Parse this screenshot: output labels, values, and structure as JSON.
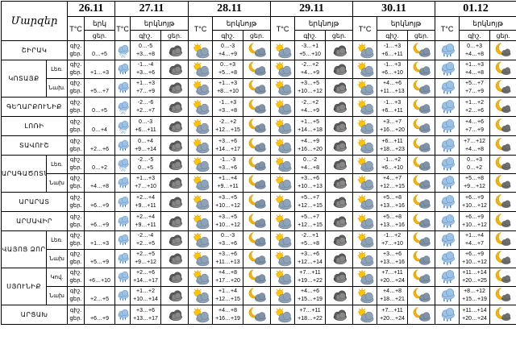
{
  "header": {
    "region_title": "Մարզեր",
    "dates": [
      "26.11",
      "27.11",
      "28.11",
      "29.11",
      "30.11",
      "01.12"
    ],
    "temp_label": "T°C",
    "precip_label": "երկնոյթ",
    "precip_label_first": "երկ",
    "night_label": "գիշ.",
    "day_label": "ցեր.",
    "day_label_first": "ցեր."
  },
  "regions": [
    {
      "name": "ՇԻՐԱԿ",
      "rows": [
        {
          "sub": "",
          "d0": {
            "t": "0…+5",
            "icon": "cloud-snow"
          },
          "days": [
            {
              "n": "0…-5",
              "d": "+3…+8",
              "in": "cloud-dark",
              "id": "sun-cloud"
            },
            {
              "n": "0…-3",
              "d": "+4…+9",
              "in": "moon-cloud",
              "id": "sun-cloud"
            },
            {
              "n": "-3…+1",
              "d": "+5…+10",
              "in": "cloud-dark",
              "id": "sun-cloud"
            },
            {
              "n": "-1…+3",
              "d": "+6…+11",
              "in": "moon-cloud",
              "id": "cloud-rain"
            },
            {
              "n": "0…+3",
              "d": "+4…+8",
              "in": "moon",
              "id": "cloud-rain"
            }
          ]
        }
      ]
    },
    {
      "name": "ԿՈՏԱՅՔ",
      "rows": [
        {
          "sub": "Լեռ.",
          "d0": {
            "t": "+1…+3",
            "icon": "cloud-rain"
          },
          "days": [
            {
              "n": "-1…-4",
              "d": "+3…+6",
              "in": "cloud-dark",
              "id": "sun-cloud"
            },
            {
              "n": "0…+3",
              "d": "+5…+8",
              "in": "moon-cloud",
              "id": "sun-cloud"
            },
            {
              "n": "-2…+2",
              "d": "+4…+9",
              "in": "cloud-dark",
              "id": "sun-cloud"
            },
            {
              "n": "-1…+3",
              "d": "+6…+10",
              "in": "moon-cloud",
              "id": "cloud-rain"
            },
            {
              "n": "+1…+3",
              "d": "+4…+8",
              "in": "moon",
              "id": "cloud-rain"
            }
          ]
        },
        {
          "sub": "Նախ.",
          "d0": {
            "t": "+5…+7",
            "icon": "cloud-rain"
          },
          "days": [
            {
              "n": "+1…+3",
              "d": "+7…+9",
              "in": "cloud-dark",
              "id": "sun-cloud"
            },
            {
              "n": "+1…+3",
              "d": "+8…+10",
              "in": "moon-cloud",
              "id": "sun-cloud"
            },
            {
              "n": "+3…+5",
              "d": "+10…+12",
              "in": "cloud-dark",
              "id": "sun-cloud"
            },
            {
              "n": "+4…+6",
              "d": "+11…+13",
              "in": "moon-cloud",
              "id": "cloud-rain"
            },
            {
              "n": "+5…+7",
              "d": "+7…+9",
              "in": "moon",
              "id": "cloud-rain"
            }
          ]
        }
      ]
    },
    {
      "name": "ԳԵՂԱՐՔՈՒՆԻՔ",
      "rows": [
        {
          "sub": "",
          "d0": {
            "t": "0…+5",
            "icon": "cloud-snow"
          },
          "days": [
            {
              "n": "-2…-6",
              "d": "+2…+7",
              "in": "cloud-dark",
              "id": "sun-cloud"
            },
            {
              "n": "-1…+3",
              "d": "+3…+8",
              "in": "moon-cloud",
              "id": "sun-cloud"
            },
            {
              "n": "-2…+2",
              "d": "+4…+9",
              "in": "cloud-dark",
              "id": "sun-cloud"
            },
            {
              "n": "-1…+3",
              "d": "+6…+11",
              "in": "moon-cloud",
              "id": "cloud-rain"
            },
            {
              "n": "+1…+2",
              "d": "+2…+6",
              "in": "moon",
              "id": "cloud-rain"
            }
          ]
        }
      ]
    },
    {
      "name": "ԼՈՌԻ",
      "rows": [
        {
          "sub": "",
          "d0": {
            "t": "0…+4",
            "icon": "cloud-snow"
          },
          "days": [
            {
              "n": "0…-3",
              "d": "+6…+11",
              "in": "cloud-dark",
              "id": "sun-cloud"
            },
            {
              "n": "-2…+2",
              "d": "+12…+15",
              "in": "moon-cloud",
              "id": "sun-cloud"
            },
            {
              "n": "+1…+5",
              "d": "+14…+18",
              "in": "cloud-dark",
              "id": "sun-cloud"
            },
            {
              "n": "+3…+7",
              "d": "+16…+20",
              "in": "moon-cloud",
              "id": "cloud-rain"
            },
            {
              "n": "+4…+6",
              "d": "+7…+9",
              "in": "moon",
              "id": "cloud-rain"
            }
          ]
        }
      ]
    },
    {
      "name": "ՏԱՎՈՒՇ",
      "rows": [
        {
          "sub": "",
          "d0": {
            "t": "+2…+6",
            "icon": "cloud-rain"
          },
          "days": [
            {
              "n": "0…+4",
              "d": "+9…+14",
              "in": "cloud-dark",
              "id": "sun-cloud"
            },
            {
              "n": "+3…+6",
              "d": "+14…+17",
              "in": "moon-cloud",
              "id": "sun-cloud"
            },
            {
              "n": "+4…+9",
              "d": "+16…+20",
              "in": "cloud-dark",
              "id": "sun-cloud"
            },
            {
              "n": "+6…+11",
              "d": "+18…+23",
              "in": "moon-cloud",
              "id": "cloud-rain"
            },
            {
              "n": "+7…+12",
              "d": "+4…+8",
              "in": "moon",
              "id": "cloud-rain"
            }
          ]
        }
      ]
    },
    {
      "name": "ԱՐԱԳԱԾՈՏՆ",
      "rows": [
        {
          "sub": "Լեռ.",
          "d0": {
            "t": "0…+2",
            "icon": "cloud-snow"
          },
          "days": [
            {
              "n": "-2…-5",
              "d": "0…+5",
              "in": "cloud-dark",
              "id": "sun-cloud"
            },
            {
              "n": "-1…-3",
              "d": "+3…+6",
              "in": "moon-cloud",
              "id": "sun-cloud"
            },
            {
              "n": "0…-2",
              "d": "+4…+8",
              "in": "cloud-dark",
              "id": "sun-cloud"
            },
            {
              "n": "-1…+2",
              "d": "+6…+10",
              "in": "moon-cloud",
              "id": "cloud-rain"
            },
            {
              "n": "0…+3",
              "d": "0…+2",
              "in": "moon",
              "id": "cloud-rain"
            }
          ]
        },
        {
          "sub": "Նախ",
          "d0": {
            "t": "+4…+8",
            "icon": "cloud-rain"
          },
          "days": [
            {
              "n": "+1…+3",
              "d": "+7…+10",
              "in": "cloud-dark",
              "id": "sun-cloud"
            },
            {
              "n": "+1…+4",
              "d": "+9…+11",
              "in": "moon-cloud",
              "id": "sun-cloud"
            },
            {
              "n": "+3…+6",
              "d": "+10…+13",
              "in": "cloud-dark",
              "id": "sun-cloud"
            },
            {
              "n": "+4…+7",
              "d": "+12…+15",
              "in": "moon-cloud",
              "id": "cloud-rain"
            },
            {
              "n": "+5…+8",
              "d": "+9…+12",
              "in": "moon",
              "id": "cloud-rain"
            }
          ]
        }
      ]
    },
    {
      "name": "ԱՐԱՐԱՏ",
      "rows": [
        {
          "sub": "",
          "d0": {
            "t": "+6…+9",
            "icon": "cloud-rain"
          },
          "days": [
            {
              "n": "+2…+4",
              "d": "+9…+11",
              "in": "cloud-dark",
              "id": "sun-cloud"
            },
            {
              "n": "+3…+5",
              "d": "+10…+12",
              "in": "moon-cloud",
              "id": "sun-cloud"
            },
            {
              "n": "+5…+7",
              "d": "+12…+15",
              "in": "cloud-dark",
              "id": "sun-cloud"
            },
            {
              "n": "+5…+8",
              "d": "+13…+16",
              "in": "moon-cloud",
              "id": "cloud-rain"
            },
            {
              "n": "+6…+9",
              "d": "+10…+12",
              "in": "moon",
              "id": "cloud-rain"
            }
          ]
        }
      ]
    },
    {
      "name": "ԱՐՄԱՎԻՐ",
      "rows": [
        {
          "sub": "",
          "d0": {
            "t": "+6…+9",
            "icon": "cloud-rain"
          },
          "days": [
            {
              "n": "+2…+4",
              "d": "+9…+11",
              "in": "cloud-dark",
              "id": "sun-cloud"
            },
            {
              "n": "+3…+5",
              "d": "+10…+12",
              "in": "moon-cloud",
              "id": "sun-cloud"
            },
            {
              "n": "+5…+7",
              "d": "+12…+15",
              "in": "cloud-dark",
              "id": "sun-cloud"
            },
            {
              "n": "+5…+8",
              "d": "+13…+16",
              "in": "moon-cloud",
              "id": "cloud-rain"
            },
            {
              "n": "+6…+9",
              "d": "+10…+12",
              "in": "moon",
              "id": "cloud-rain"
            }
          ]
        }
      ]
    },
    {
      "name": "ՎԱՅՈՑ ՁՈՐ",
      "rows": [
        {
          "sub": "Լեռ.",
          "d0": {
            "t": "+1…+3",
            "icon": "cloud-rain"
          },
          "days": [
            {
              "n": "-2…-4",
              "d": "+2…+5",
              "in": "cloud-dark",
              "id": "sun-cloud"
            },
            {
              "n": "0…-3",
              "d": "+3…+6",
              "in": "moon-cloud",
              "id": "sun-cloud"
            },
            {
              "n": "-2…+1",
              "d": "+5…+8",
              "in": "cloud-dark",
              "id": "sun-cloud"
            },
            {
              "n": "-1…+2",
              "d": "+7…+10",
              "in": "moon-cloud",
              "id": "cloud-rain"
            },
            {
              "n": "+1…+4",
              "d": "+4…+7",
              "in": "moon",
              "id": "cloud-rain"
            }
          ]
        },
        {
          "sub": "Նախ",
          "d0": {
            "t": "+5…+9",
            "icon": "cloud-rain"
          },
          "days": [
            {
              "n": "+2…+5",
              "d": "+9…+12",
              "in": "cloud-dark",
              "id": "sun-cloud"
            },
            {
              "n": "+3…+6",
              "d": "+11…+13",
              "in": "moon-cloud",
              "id": "sun-cloud"
            },
            {
              "n": "+3…+6",
              "d": "+12…+14",
              "in": "cloud-dark",
              "id": "sun-cloud"
            },
            {
              "n": "+3…+6",
              "d": "+13…+16",
              "in": "moon-cloud",
              "id": "cloud-rain"
            },
            {
              "n": "+6…+9",
              "d": "+10…+12",
              "in": "moon",
              "id": "cloud-rain"
            }
          ]
        }
      ]
    },
    {
      "name": "ՍՅՈՒՆԻՔ",
      "rows": [
        {
          "sub": "Կով.",
          "d0": {
            "t": "+6…+10",
            "icon": "cloud-rain"
          },
          "days": [
            {
              "n": "+2…+6",
              "d": "+14…+17",
              "in": "cloud-dark",
              "id": "sun-cloud"
            },
            {
              "n": "+4…+8",
              "d": "+17…+20",
              "in": "moon-cloud",
              "id": "sun-cloud"
            },
            {
              "n": "+7…+11",
              "d": "+19…+22",
              "in": "cloud-dark",
              "id": "sun-cloud"
            },
            {
              "n": "+7…+11",
              "d": "+20…+24",
              "in": "moon-cloud",
              "id": "cloud-rain"
            },
            {
              "n": "+11…+14",
              "d": "+20…+25",
              "in": "moon",
              "id": "cloud-rain"
            }
          ]
        },
        {
          "sub": "Նախ",
          "d0": {
            "t": "+2…+5",
            "icon": "cloud-rain"
          },
          "days": [
            {
              "n": "+1…+2",
              "d": "+10…+14",
              "in": "cloud-dark",
              "id": "sun-cloud"
            },
            {
              "n": "+1…+4",
              "d": "+12…+15",
              "in": "moon-cloud",
              "id": "sun-cloud"
            },
            {
              "n": "+4…+6",
              "d": "+15…+19",
              "in": "cloud-dark",
              "id": "sun-cloud"
            },
            {
              "n": "+4…+8",
              "d": "+18…+21",
              "in": "moon-cloud",
              "id": "cloud-rain"
            },
            {
              "n": "+8…+12",
              "d": "+15…+19",
              "in": "moon",
              "id": "cloud-rain"
            }
          ]
        }
      ]
    },
    {
      "name": "ԱՐՑԱԽ",
      "rows": [
        {
          "sub": "",
          "d0": {
            "t": "+6…+9",
            "icon": "cloud-rain"
          },
          "days": [
            {
              "n": "+3…+6",
              "d": "+13…+17",
              "in": "cloud-dark",
              "id": "sun-cloud"
            },
            {
              "n": "+4…+8",
              "d": "+16…+19",
              "in": "moon-cloud",
              "id": "sun-cloud"
            },
            {
              "n": "+7…+11",
              "d": "+18…+22",
              "in": "cloud-dark",
              "id": "sun-cloud"
            },
            {
              "n": "+7…+11",
              "d": "+20…+24",
              "in": "moon-cloud",
              "id": "cloud-rain"
            },
            {
              "n": "+11…+14",
              "d": "+20…+24",
              "in": "moon",
              "id": "cloud-rain"
            }
          ]
        }
      ]
    }
  ]
}
